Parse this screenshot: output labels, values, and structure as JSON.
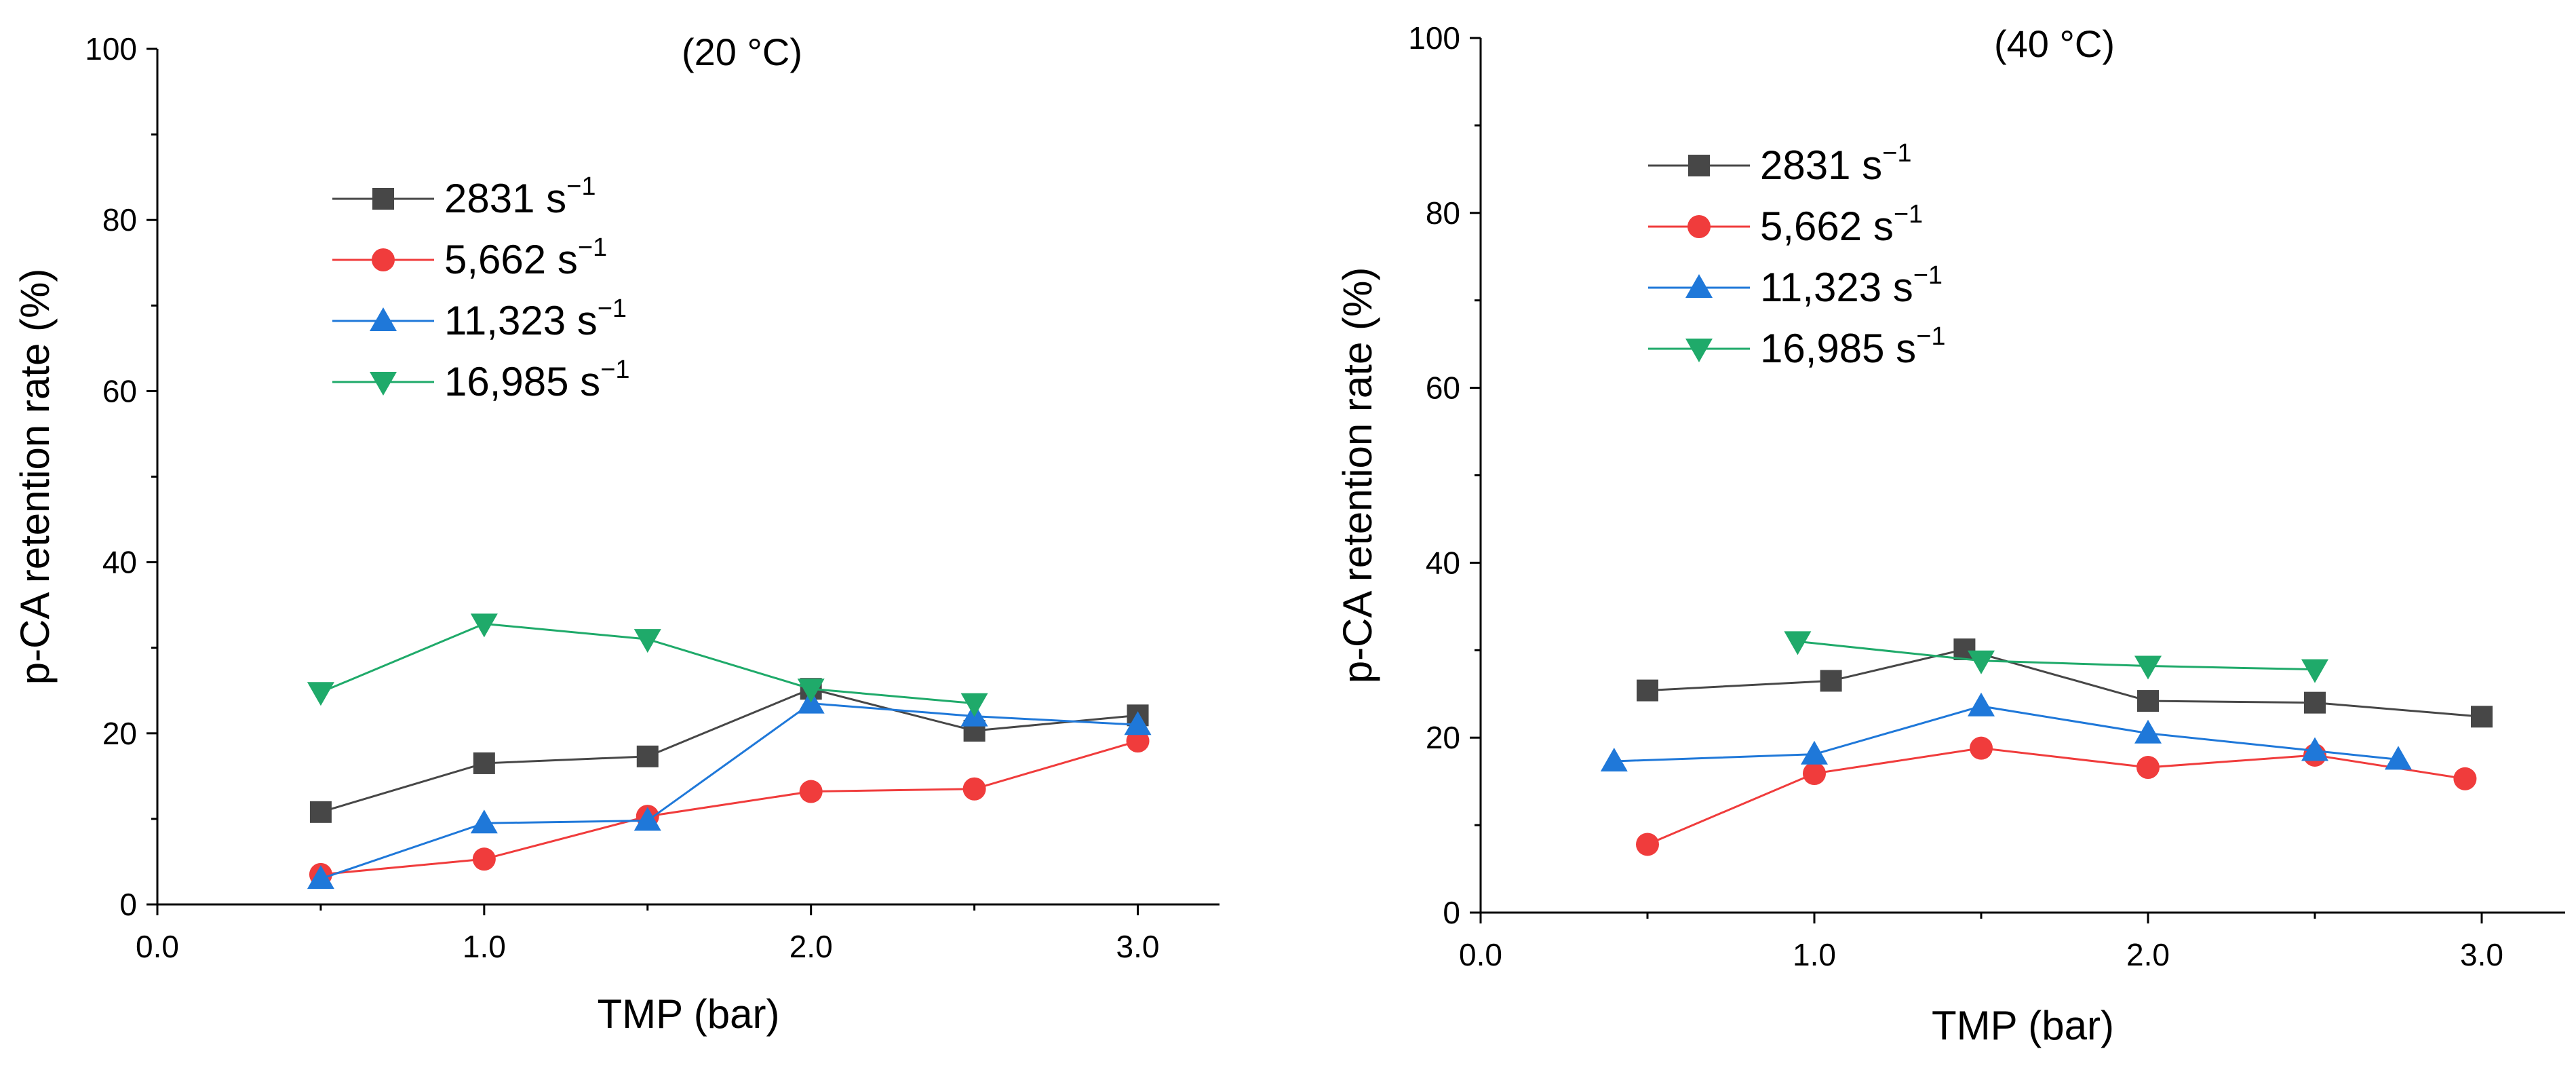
{
  "chart_data": [
    {
      "type": "line",
      "title": "(20 °C)",
      "xlabel": "TMP (bar)",
      "ylabel": "p-CA retention rate (%)",
      "xlim": [
        0.0,
        3.25
      ],
      "ylim": [
        0,
        100
      ],
      "xticks": [
        "0.0",
        "1.0",
        "2.0",
        "3.0"
      ],
      "yticks": [
        "0",
        "20",
        "40",
        "60",
        "80",
        "100"
      ],
      "legend_position": "upper-left",
      "series": [
        {
          "name": "2831 s",
          "sup": "−1",
          "marker": "square",
          "color": "#474747",
          "x": [
            0.5,
            1.0,
            1.5,
            2.0,
            2.5,
            3.0
          ],
          "y": [
            10.8,
            16.5,
            17.3,
            25.2,
            20.3,
            22.1
          ]
        },
        {
          "name": "5,662 s",
          "sup": "−1",
          "marker": "circle",
          "color": "#f03c3c",
          "x": [
            0.5,
            1.0,
            1.5,
            2.0,
            2.5,
            3.0
          ],
          "y": [
            3.5,
            5.3,
            10.3,
            13.2,
            13.5,
            19.1
          ]
        },
        {
          "name": "11,323 s",
          "sup": "−1",
          "marker": "triangle-up",
          "color": "#1f78d9",
          "x": [
            0.5,
            1.0,
            1.5,
            2.0,
            2.5,
            3.0
          ],
          "y": [
            3.0,
            9.5,
            9.8,
            23.5,
            22.0,
            21.0
          ]
        },
        {
          "name": "16,985 s",
          "sup": "−1",
          "marker": "triangle-down",
          "color": "#1faa6a",
          "x": [
            0.5,
            1.0,
            1.5,
            2.0,
            2.5
          ],
          "y": [
            24.8,
            32.8,
            31.0,
            25.2,
            23.5
          ]
        }
      ]
    },
    {
      "type": "line",
      "title": "(40 °C)",
      "xlabel": "TMP (bar)",
      "ylabel": "p-CA retention rate (%)",
      "xlim": [
        0.0,
        3.25
      ],
      "ylim": [
        0,
        100
      ],
      "xticks": [
        "0.0",
        "1.0",
        "2.0",
        "3.0"
      ],
      "yticks": [
        "0",
        "20",
        "40",
        "60",
        "80",
        "100"
      ],
      "legend_position": "upper-left",
      "series": [
        {
          "name": "2831 s",
          "sup": "−1",
          "marker": "square",
          "color": "#474747",
          "x": [
            0.5,
            1.05,
            1.45,
            2.0,
            2.5,
            3.0
          ],
          "y": [
            25.4,
            26.5,
            30.1,
            24.2,
            24.0,
            22.4
          ]
        },
        {
          "name": "5,662 s",
          "sup": "−1",
          "marker": "circle",
          "color": "#f03c3c",
          "x": [
            0.5,
            1.0,
            1.5,
            2.0,
            2.5,
            2.95
          ],
          "y": [
            7.8,
            15.9,
            18.8,
            16.6,
            18.0,
            15.3
          ]
        },
        {
          "name": "11,323 s",
          "sup": "−1",
          "marker": "triangle-up",
          "color": "#1f78d9",
          "x": [
            0.4,
            1.0,
            1.5,
            2.0,
            2.5,
            2.75
          ],
          "y": [
            17.3,
            18.1,
            23.6,
            20.5,
            18.5,
            17.5
          ]
        },
        {
          "name": "16,985 s",
          "sup": "−1",
          "marker": "triangle-down",
          "color": "#1faa6a",
          "x": [
            0.95,
            1.5,
            2.0,
            2.5
          ],
          "y": [
            31.0,
            28.8,
            28.2,
            27.8
          ]
        }
      ]
    }
  ]
}
